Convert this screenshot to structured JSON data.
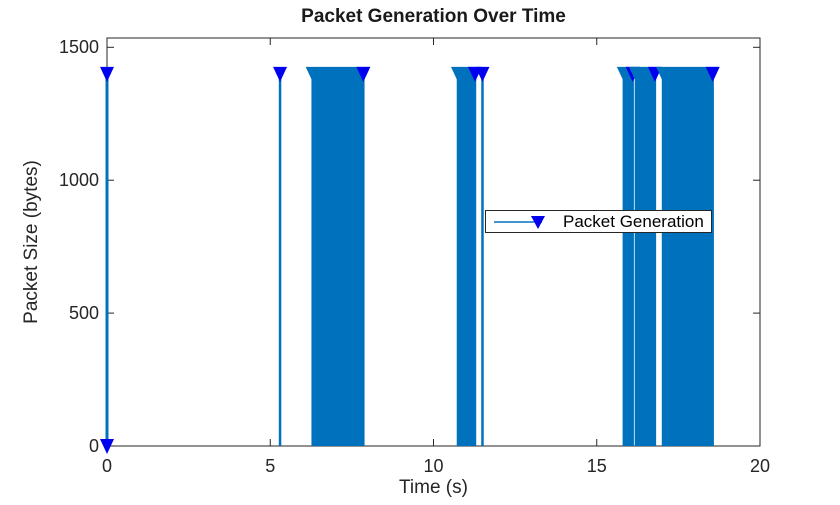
{
  "chart_data": {
    "type": "stem",
    "title": "Packet Generation Over Time",
    "xlabel": "Time (s)",
    "ylabel": "Packet Size (bytes)",
    "xlim": [
      0,
      20
    ],
    "ylim": [
      0,
      1535
    ],
    "x_ticks": [
      0,
      5,
      10,
      15,
      20
    ],
    "y_ticks": [
      0,
      500,
      1000,
      1500
    ],
    "grid": false,
    "packet_size_bytes": 1400,
    "single_stems": [
      {
        "t": 0.0,
        "size": 1400,
        "zero_marker": true
      },
      {
        "t": 5.3,
        "size": 1400,
        "zero_marker": false
      },
      {
        "t": 11.5,
        "size": 1400,
        "zero_marker": false
      }
    ],
    "burst_ranges": [
      {
        "start": 6.3,
        "end": 7.85,
        "size": 1400
      },
      {
        "start": 10.75,
        "end": 11.27,
        "size": 1400
      },
      {
        "start": 15.83,
        "end": 16.1,
        "size": 1400
      },
      {
        "start": 16.2,
        "end": 16.78,
        "size": 1400
      },
      {
        "start": 17.03,
        "end": 18.55,
        "size": 1400
      }
    ],
    "legend": {
      "label": "Packet Generation",
      "position": "middle-right"
    },
    "colors": {
      "stem": "#0072BD",
      "marker": "#0000EE",
      "axis": "#262626",
      "background": "#ffffff"
    }
  }
}
